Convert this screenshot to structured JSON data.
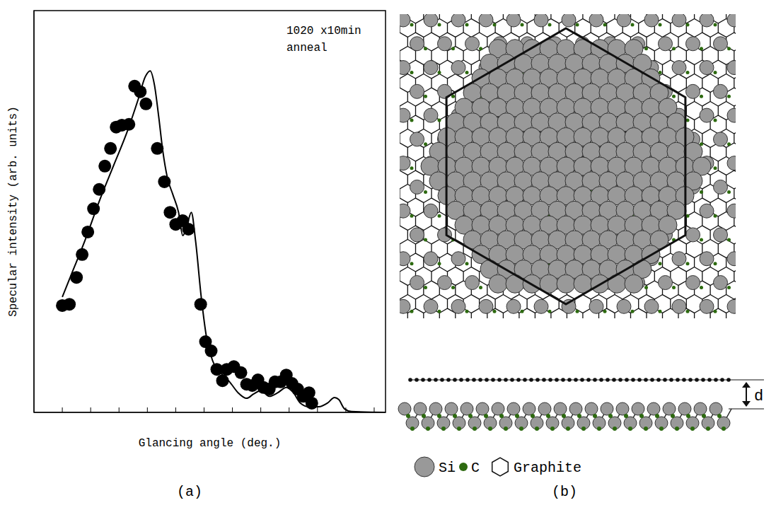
{
  "chart_data": {
    "type": "scatter",
    "x_label": "Glancing angle (deg.)",
    "y_label": "Specular intensity (arb. units)",
    "annotations": [
      "1020 x10min anneal"
    ],
    "xlim": [
      0,
      12.4
    ],
    "xticks": [
      1,
      2,
      3,
      4,
      5,
      6,
      7,
      8,
      9,
      10,
      11,
      12
    ],
    "ylim": [
      0,
      1
    ],
    "yticks": [
      0,
      1
    ],
    "tick_labels": false,
    "series": [
      {
        "type": "scatter",
        "marker": "circle",
        "color": "#000000",
        "x": [
          1.0,
          1.25,
          1.5,
          1.7,
          1.9,
          2.1,
          2.3,
          2.5,
          2.7,
          2.9,
          3.1,
          3.35,
          3.55,
          3.75,
          3.95,
          4.35,
          4.6,
          4.8,
          5.0,
          5.25,
          5.45,
          5.88,
          6.05,
          6.25,
          6.45,
          6.65,
          6.8,
          7.05,
          7.3,
          7.5,
          7.7,
          7.9,
          8.1,
          8.3,
          8.5,
          8.7,
          8.9,
          9.1,
          9.3,
          9.5,
          9.7,
          9.8
        ],
        "values": [
          0.266,
          0.269,
          0.336,
          0.393,
          0.449,
          0.507,
          0.555,
          0.613,
          0.657,
          0.71,
          0.715,
          0.717,
          0.812,
          0.798,
          0.768,
          0.657,
          0.574,
          0.498,
          0.468,
          0.477,
          0.456,
          0.269,
          0.176,
          0.153,
          0.107,
          0.079,
          0.107,
          0.114,
          0.099,
          0.07,
          0.067,
          0.081,
          0.062,
          0.058,
          0.076,
          0.076,
          0.093,
          0.072,
          0.058,
          0.04,
          0.049,
          0.023
        ]
      },
      {
        "type": "line",
        "line_style": "solid",
        "color": "#000000",
        "x": [
          1.0,
          1.3,
          1.8,
          2.3,
          2.8,
          3.3,
          3.68,
          3.93,
          4.1,
          4.25,
          4.4,
          4.55,
          4.7,
          4.9,
          5.1,
          5.25,
          5.4,
          5.55,
          5.7,
          5.9,
          6.1,
          6.3,
          6.6,
          6.9,
          7.2,
          7.5,
          7.75,
          8.0,
          8.3,
          8.6,
          8.9,
          9.15,
          9.4,
          9.7,
          10.05,
          10.35,
          10.6,
          10.75,
          10.95,
          11.2,
          12.4
        ],
        "values": [
          0.287,
          0.34,
          0.428,
          0.525,
          0.613,
          0.701,
          0.78,
          0.836,
          0.85,
          0.815,
          0.736,
          0.648,
          0.586,
          0.542,
          0.498,
          0.44,
          0.466,
          0.498,
          0.427,
          0.287,
          0.181,
          0.129,
          0.097,
          0.076,
          0.049,
          0.035,
          0.046,
          0.054,
          0.04,
          0.049,
          0.062,
          0.049,
          0.023,
          0.014,
          0.014,
          0.023,
          0.037,
          0.032,
          0.009,
          0.002,
          0.0
        ]
      }
    ]
  },
  "panels": [
    "(a)",
    "(b)"
  ],
  "diagram": {
    "distance_label": "d",
    "key": [
      {
        "label": "Si",
        "color": "#999999"
      },
      {
        "label": "C",
        "color": "#2d6a10"
      },
      {
        "label": "Graphite"
      }
    ]
  }
}
